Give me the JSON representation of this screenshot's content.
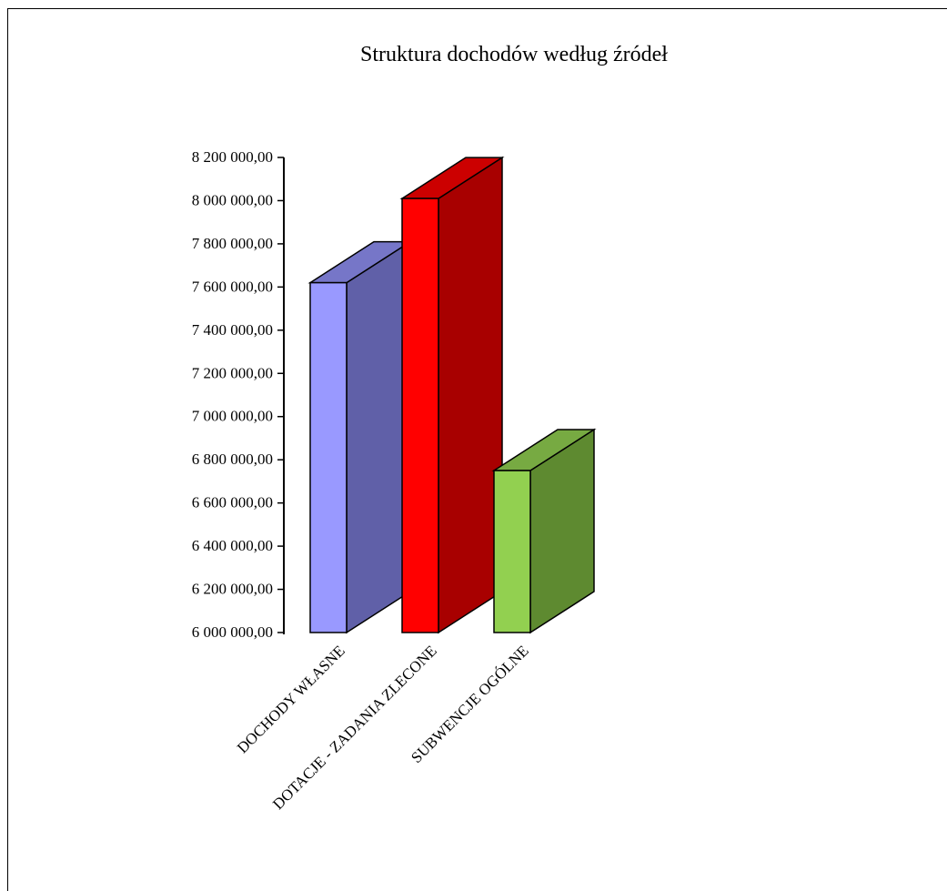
{
  "chart_data": {
    "type": "bar",
    "style": "3d",
    "title": "Struktura dochodów według źródeł",
    "xlabel": "",
    "ylabel": "",
    "ylim": [
      6000000,
      8200000
    ],
    "yticks": [
      6000000,
      6200000,
      6400000,
      6600000,
      6800000,
      7000000,
      7200000,
      7400000,
      7600000,
      7800000,
      8000000,
      8200000
    ],
    "ytick_labels": [
      "6 000 000,00",
      "6 200 000,00",
      "6 400 000,00",
      "6 600 000,00",
      "6 800 000,00",
      "7 000 000,00",
      "7 200 000,00",
      "7 400 000,00",
      "7 600 000,00",
      "7 800 000,00",
      "8 000 000,00",
      "8 200 000,00"
    ],
    "grid": false,
    "legend": "none",
    "categories": [
      "DOCHODY WŁASNE",
      "DOTACJE - ZADANIA ZLECONE",
      "SUBWENCJE OGÓLNE"
    ],
    "values": [
      7620000,
      8010000,
      6750000
    ],
    "colors": [
      {
        "front": "#9999ff",
        "side": "#6060a8",
        "top": "#7676c8"
      },
      {
        "front": "#ff0000",
        "side": "#a80000",
        "top": "#cc0000"
      },
      {
        "front": "#92d050",
        "side": "#5e8a30",
        "top": "#77aa42"
      }
    ]
  }
}
